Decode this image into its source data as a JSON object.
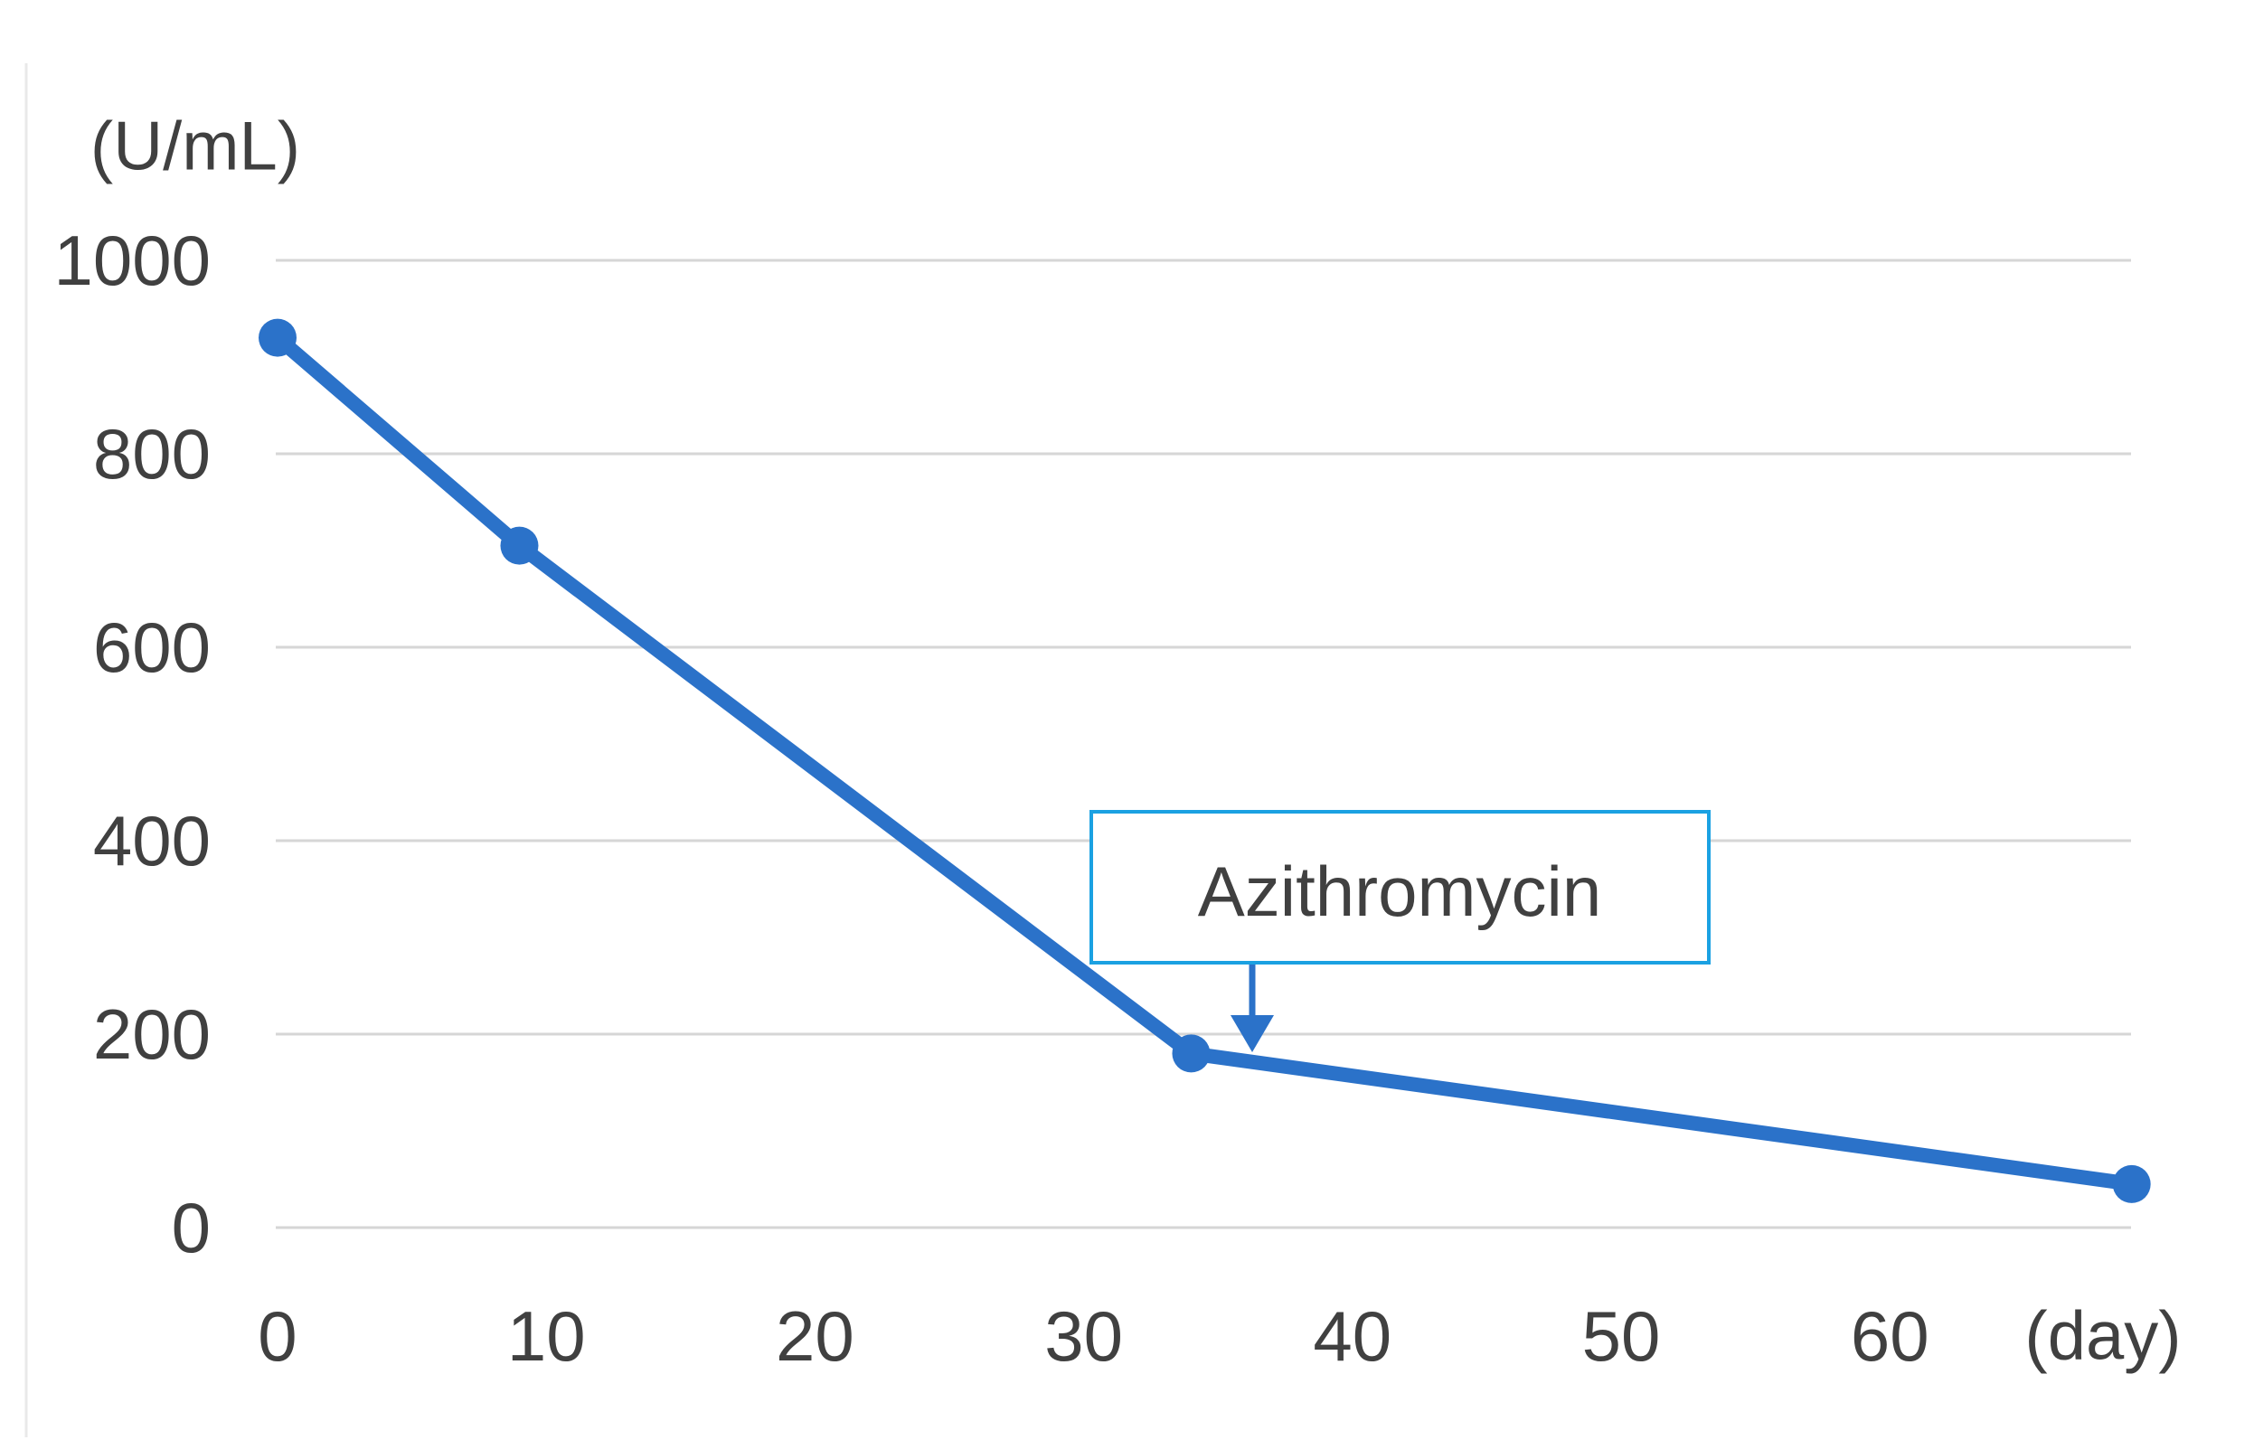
{
  "chart_data": {
    "type": "line",
    "title": "",
    "y_unit_label": "(U/mL)",
    "x_unit_label": "(day)",
    "x_ticks": [
      0,
      10,
      20,
      30,
      40,
      50,
      60
    ],
    "y_ticks": [
      0,
      200,
      400,
      600,
      800,
      1000
    ],
    "xlim": [
      0,
      69
    ],
    "ylim": [
      0,
      1000
    ],
    "grid": "horizontal-only",
    "legend": "none",
    "series": [
      {
        "x": [
          0,
          9,
          34,
          69
        ],
        "y": [
          920,
          705,
          180,
          45
        ]
      }
    ],
    "annotation": {
      "label": "Azithromycin",
      "arrow_points_to_day": 36,
      "arrow_points_to_value": 185
    }
  },
  "colors": {
    "line": "#2B72C9",
    "marker": "#2B72C9",
    "grid": "#D6D6D6",
    "annotation_border": "#1BA1E2",
    "annotation_fill": "#FFFFFF",
    "text": "#404040",
    "background": "#FFFFFF",
    "chart_edge": "#E9E9E9"
  }
}
